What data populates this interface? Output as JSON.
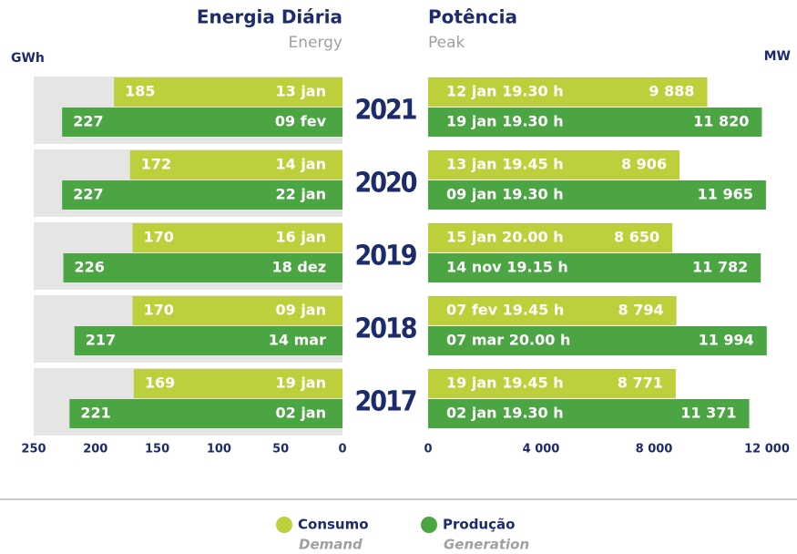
{
  "chart_data": [
    {
      "type": "bar",
      "orientation": "horizontal",
      "title": "Energia Diária",
      "subtitle": "Energy",
      "xlabel": "GWh",
      "categories": [
        "2021",
        "2020",
        "2019",
        "2018",
        "2017"
      ],
      "xlim": [
        250,
        0
      ],
      "xticks": [
        250,
        200,
        150,
        100,
        50,
        0
      ],
      "series": [
        {
          "name": "Consumo",
          "subname": "Demand",
          "color": "#bdd03c",
          "values": [
            185,
            172,
            170,
            170,
            169
          ],
          "dates": [
            "13 jan",
            "14 jan",
            "16 jan",
            "09 jan",
            "19 jan"
          ]
        },
        {
          "name": "Produção",
          "subname": "Generation",
          "color": "#4ba543",
          "values": [
            227,
            227,
            226,
            217,
            221
          ],
          "dates": [
            "09 fev",
            "22 jan",
            "18 dez",
            "14 mar",
            "02 jan"
          ]
        }
      ]
    },
    {
      "type": "bar",
      "orientation": "horizontal",
      "title": "Potência",
      "subtitle": "Peak",
      "xlabel": "MW",
      "xlim": [
        0,
        12000
      ],
      "xticks": [
        0,
        {
          "value": 4000,
          "label": "4 000"
        },
        {
          "value": 8000,
          "label": "8 000"
        },
        {
          "value": 12000,
          "label": "12 000"
        }
      ],
      "series": [
        {
          "color": "#bdd03c",
          "values": [
            9888,
            8906,
            8650,
            8794,
            8771
          ],
          "value_labels": [
            "9 888",
            "8 906",
            "8 650",
            "8 794",
            "8 771"
          ],
          "dates": [
            "12 jan 19.30 h",
            "13 jan 19.45 h",
            "15 jan 20.00 h",
            "07 fev 19.45 h",
            "19 jan 19.45 h"
          ]
        },
        {
          "color": "#4ba543",
          "values": [
            11820,
            11965,
            11782,
            11994,
            11371
          ],
          "value_labels": [
            "11 820",
            "11 965",
            "11 782",
            "11 994",
            "11 371"
          ],
          "dates": [
            "19 jan 19.30 h",
            "09 jan 19.30 h",
            "14 nov 19.15 h",
            "07 mar 20.00 h",
            "02 jan 19.30 h"
          ]
        }
      ]
    }
  ]
}
